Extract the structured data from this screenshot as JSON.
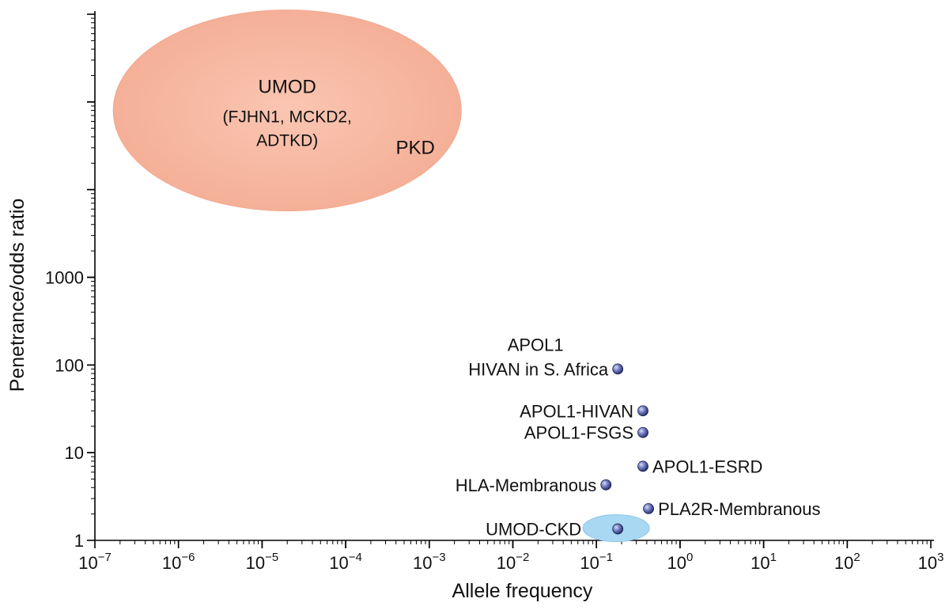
{
  "chart_data": {
    "type": "scatter",
    "title": "",
    "xlabel": "Allele frequency",
    "ylabel": "Penetrance/odds ratio",
    "x_scale": "log",
    "y_scale": "log",
    "xlim": [
      1e-07,
      1000
    ],
    "ylim": [
      1,
      1000000
    ],
    "x_ticks": [
      {
        "value": 1e-07,
        "base": "10",
        "exp": "−7"
      },
      {
        "value": 1e-06,
        "base": "10",
        "exp": "−6"
      },
      {
        "value": 1e-05,
        "base": "10",
        "exp": "−5"
      },
      {
        "value": 0.0001,
        "base": "10",
        "exp": "−4"
      },
      {
        "value": 0.001,
        "base": "10",
        "exp": "−3"
      },
      {
        "value": 0.01,
        "base": "10",
        "exp": "−2"
      },
      {
        "value": 0.1,
        "base": "10",
        "exp": "−1"
      },
      {
        "value": 1,
        "base": "10",
        "exp": "0"
      },
      {
        "value": 10,
        "base": "10",
        "exp": "1"
      },
      {
        "value": 100,
        "base": "10",
        "exp": "2"
      },
      {
        "value": 1000,
        "base": "10",
        "exp": "3"
      }
    ],
    "y_ticks": [
      {
        "value": 1,
        "label": "1"
      },
      {
        "value": 10,
        "label": "10"
      },
      {
        "value": 100,
        "label": "100"
      },
      {
        "value": 1000,
        "label": "1000"
      }
    ],
    "points": [
      {
        "name": "apol1-hivan-s-africa",
        "x": 0.18,
        "y": 90,
        "label": [
          "APOL1",
          "HIVAN in S. Africa"
        ],
        "label_side": "left"
      },
      {
        "name": "apol1-hivan",
        "x": 0.36,
        "y": 30,
        "label": [
          "APOL1-HIVAN"
        ],
        "label_side": "left"
      },
      {
        "name": "apol1-fsgs",
        "x": 0.36,
        "y": 17,
        "label": [
          "APOL1-FSGS"
        ],
        "label_side": "left"
      },
      {
        "name": "apol1-esrd",
        "x": 0.36,
        "y": 7,
        "label": [
          "APOL1-ESRD"
        ],
        "label_side": "right"
      },
      {
        "name": "hla-membranous",
        "x": 0.13,
        "y": 4.3,
        "label": [
          "HLA-Membranous"
        ],
        "label_side": "left"
      },
      {
        "name": "pla2r-membranous",
        "x": 0.42,
        "y": 2.3,
        "label": [
          "PLA2R-Membranous"
        ],
        "label_side": "right"
      },
      {
        "name": "umod-ckd",
        "x": 0.18,
        "y": 1.35,
        "label": [
          "UMOD-CKD"
        ],
        "label_side": "left",
        "highlight": true
      }
    ],
    "regions": [
      {
        "name": "mendelian-region",
        "color": "#f6b6a0",
        "center_x": 2e-05,
        "center_y": 80000,
        "lines": [
          "UMOD",
          "(FJHN1, MCKD2,",
          "ADTKD)"
        ],
        "extra_label": "PKD"
      }
    ],
    "colors": {
      "region_fill": "#f6b6a0",
      "region_edge": "#f2a890",
      "highlight_fill": "#a9d8f2",
      "point_fill": "#5c66b4",
      "axis": "#000000"
    }
  }
}
